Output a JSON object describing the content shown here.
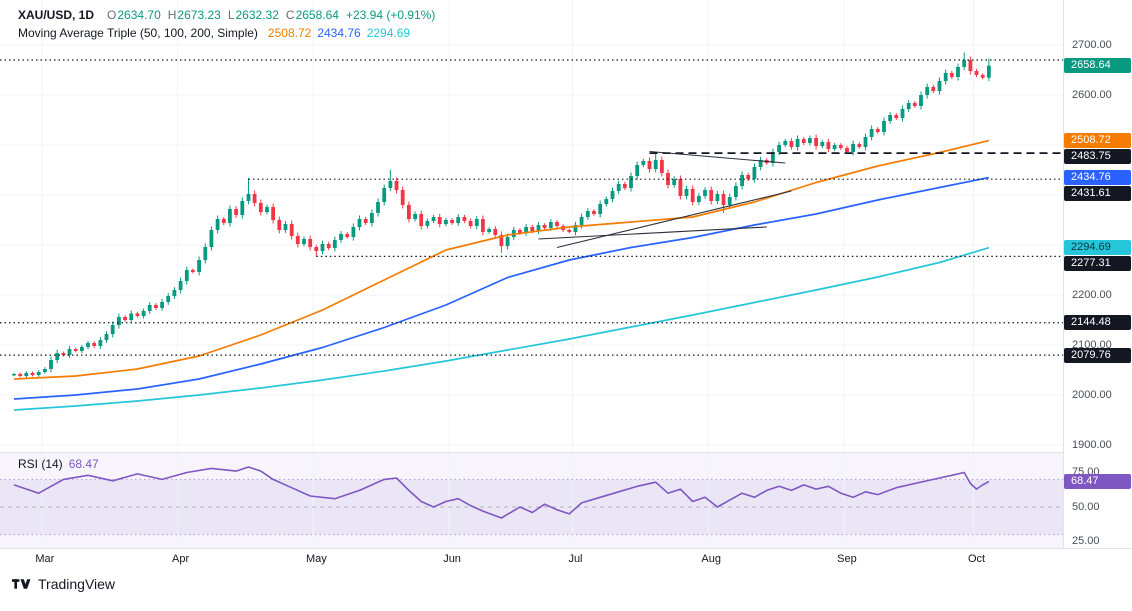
{
  "header": {
    "symbol": "XAU/USD, 1D",
    "o_label": "O",
    "o_value": "2634.70",
    "h_label": "H",
    "h_value": "2673.23",
    "l_label": "L",
    "l_value": "2632.32",
    "c_label": "C",
    "c_value": "2658.64",
    "change": "+23.94 (+0.91%)"
  },
  "ma_legend": {
    "label": "Moving Average Triple (50, 100, 200, Simple)",
    "v50": "2508.72",
    "v100": "2434.76",
    "v200": "2294.69"
  },
  "rsi_legend": {
    "label": "RSI (14)",
    "value": "68.47"
  },
  "footer": {
    "brand": "TradingView"
  },
  "colors": {
    "up": "#089981",
    "down": "#f23645",
    "ma50": "#f57c00",
    "ma100": "#2962ff",
    "ma200": "#26c6da",
    "rsi": "#7e57c2",
    "level": "#131722",
    "grid": "#f0f3fa"
  },
  "axis": {
    "price_ticks": [
      {
        "label": "2700.00",
        "price": 2700
      },
      {
        "label": "2600.00",
        "price": 2600
      },
      {
        "label": "2200.00",
        "price": 2200
      },
      {
        "label": "2100.00",
        "price": 2100
      },
      {
        "label": "2000.00",
        "price": 2000
      },
      {
        "label": "1900.00",
        "price": 1900
      }
    ],
    "rsi_ticks": [
      {
        "label": "75.00",
        "value": 75
      },
      {
        "label": "50.00",
        "value": 50
      },
      {
        "label": "25.00",
        "value": 25
      }
    ],
    "badges": [
      {
        "label": "2658.64",
        "price": 2658.64,
        "color": "#089981",
        "text_color": "#ffffff"
      },
      {
        "label": "2508.72",
        "price": 2508.72,
        "color": "#f57c00",
        "text_color": "#ffffff"
      },
      {
        "label": "2483.75",
        "price": 2483.75,
        "color": "#131722",
        "text_color": "#ffffff"
      },
      {
        "label": "2434.76",
        "price": 2434.76,
        "color": "#2962ff",
        "text_color": "#ffffff"
      },
      {
        "label": "2431.61",
        "price": 2431.61,
        "color": "#131722",
        "text_color": "#ffffff"
      },
      {
        "label": "2294.69",
        "price": 2294.69,
        "color": "#26c6da",
        "text_color": "#10343c"
      },
      {
        "label": "2277.31",
        "price": 2277.31,
        "color": "#131722",
        "text_color": "#ffffff"
      },
      {
        "label": "2144.48",
        "price": 2144.48,
        "color": "#131722",
        "text_color": "#ffffff"
      },
      {
        "label": "2079.76",
        "price": 2079.76,
        "color": "#131722",
        "text_color": "#ffffff"
      }
    ],
    "rsi_badge": {
      "label": "68.47",
      "value": 68.47,
      "color": "#7e57c2",
      "text_color": "#ffffff"
    }
  },
  "time_axis": {
    "months": [
      {
        "label": "Mar",
        "idx": 5
      },
      {
        "label": "Apr",
        "idx": 27
      },
      {
        "label": "May",
        "idx": 49
      },
      {
        "label": "Jun",
        "idx": 71
      },
      {
        "label": "Jul",
        "idx": 91
      },
      {
        "label": "Aug",
        "idx": 113
      },
      {
        "label": "Sep",
        "idx": 135
      },
      {
        "label": "Oct",
        "idx": 156
      }
    ]
  },
  "chart_data": {
    "type": "candlestick",
    "symbol": "XAU/USD",
    "timeframe": "1D",
    "title": "XAU/USD 1D with Moving Average Triple (50,100,200, Simple) and RSI (14)",
    "last_candle": {
      "o": 2634.7,
      "h": 2673.23,
      "l": 2632.32,
      "c": 2658.64,
      "change": 23.94,
      "change_pct": 0.91
    },
    "price_ylim": [
      1886,
      2790
    ],
    "grid_prices": [
      2700,
      2600,
      2500,
      2400,
      2300,
      2200,
      2100,
      2000,
      1900
    ],
    "first_open": 2040,
    "closes": [
      2042,
      2038,
      2044,
      2040,
      2046,
      2052,
      2070,
      2084,
      2080,
      2092,
      2088,
      2096,
      2104,
      2098,
      2110,
      2122,
      2140,
      2156,
      2150,
      2163,
      2158,
      2168,
      2180,
      2174,
      2186,
      2198,
      2210,
      2228,
      2250,
      2246,
      2270,
      2296,
      2330,
      2352,
      2344,
      2372,
      2360,
      2388,
      2402,
      2384,
      2366,
      2376,
      2350,
      2330,
      2342,
      2318,
      2302,
      2312,
      2296,
      2288,
      2302,
      2294,
      2310,
      2322,
      2316,
      2336,
      2352,
      2344,
      2364,
      2386,
      2414,
      2428,
      2410,
      2380,
      2352,
      2362,
      2338,
      2348,
      2356,
      2342,
      2350,
      2344,
      2356,
      2348,
      2338,
      2352,
      2326,
      2332,
      2320,
      2298,
      2316,
      2330,
      2324,
      2336,
      2328,
      2340,
      2334,
      2346,
      2338,
      2330,
      2326,
      2340,
      2356,
      2368,
      2362,
      2382,
      2392,
      2408,
      2422,
      2414,
      2438,
      2460,
      2468,
      2452,
      2470,
      2444,
      2420,
      2432,
      2398,
      2412,
      2386,
      2398,
      2410,
      2388,
      2402,
      2380,
      2396,
      2418,
      2440,
      2432,
      2456,
      2470,
      2464,
      2486,
      2500,
      2508,
      2496,
      2512,
      2504,
      2514,
      2498,
      2506,
      2492,
      2500,
      2494,
      2486,
      2502,
      2496,
      2516,
      2532,
      2526,
      2548,
      2560,
      2554,
      2572,
      2584,
      2578,
      2600,
      2616,
      2608,
      2628,
      2644,
      2636,
      2656,
      2670,
      2648,
      2640,
      2634.7,
      2658.64
    ],
    "spike_highs": {
      "38": 2434,
      "61": 2450.5,
      "104": 2487,
      "154": 2685,
      "158": 2673.23
    },
    "spike_lows": {
      "49": 2277.3,
      "79": 2284.5,
      "115": 2364,
      "158": 2632.32
    },
    "ma50": {
      "name": "SMA 50",
      "last": 2508.72,
      "points": [
        [
          0,
          2032
        ],
        [
          10,
          2038
        ],
        [
          20,
          2052
        ],
        [
          30,
          2078
        ],
        [
          40,
          2120
        ],
        [
          50,
          2170
        ],
        [
          60,
          2230
        ],
        [
          70,
          2290
        ],
        [
          80,
          2320
        ],
        [
          90,
          2336
        ],
        [
          100,
          2346
        ],
        [
          110,
          2356
        ],
        [
          120,
          2386
        ],
        [
          130,
          2425
        ],
        [
          140,
          2458
        ],
        [
          150,
          2485
        ],
        [
          158,
          2508.72
        ]
      ]
    },
    "ma100": {
      "name": "SMA 100",
      "last": 2434.76,
      "points": [
        [
          0,
          1992
        ],
        [
          10,
          2000
        ],
        [
          20,
          2012
        ],
        [
          30,
          2032
        ],
        [
          40,
          2062
        ],
        [
          50,
          2095
        ],
        [
          60,
          2135
        ],
        [
          70,
          2180
        ],
        [
          80,
          2235
        ],
        [
          90,
          2270
        ],
        [
          100,
          2295
        ],
        [
          110,
          2315
        ],
        [
          120,
          2340
        ],
        [
          130,
          2362
        ],
        [
          140,
          2390
        ],
        [
          150,
          2415
        ],
        [
          158,
          2434.76
        ]
      ]
    },
    "ma200": {
      "name": "SMA 200",
      "last": 2294.69,
      "points": [
        [
          0,
          1970
        ],
        [
          10,
          1978
        ],
        [
          20,
          1988
        ],
        [
          30,
          2000
        ],
        [
          40,
          2014
        ],
        [
          50,
          2030
        ],
        [
          60,
          2048
        ],
        [
          70,
          2068
        ],
        [
          80,
          2090
        ],
        [
          90,
          2112
        ],
        [
          100,
          2136
        ],
        [
          110,
          2160
        ],
        [
          120,
          2185
        ],
        [
          130,
          2210
        ],
        [
          140,
          2236
        ],
        [
          150,
          2265
        ],
        [
          158,
          2294.69
        ]
      ]
    },
    "levels_dotted": [
      {
        "price": 2670.0,
        "from": 0
      },
      {
        "price": 2431.61,
        "from": 38
      },
      {
        "price": 2277.31,
        "from": 49
      },
      {
        "price": 2144.48,
        "from": 0
      },
      {
        "price": 2079.76,
        "from": 0
      }
    ],
    "level_dashed": {
      "price": 2483.75,
      "from": 103
    },
    "trendlines": [
      {
        "from": [
          103,
          2487
        ],
        "to": [
          125,
          2464
        ]
      },
      {
        "from": [
          85,
          2312
        ],
        "to": [
          122,
          2336
        ]
      },
      {
        "from": [
          88,
          2295
        ],
        "to": [
          126,
          2408
        ]
      }
    ],
    "rsi": {
      "period": 14,
      "last": 68.47,
      "upper": 70,
      "mid": 50,
      "lower": 30,
      "ylim": [
        21,
        89
      ],
      "points": [
        [
          0,
          66
        ],
        [
          4,
          60
        ],
        [
          8,
          70
        ],
        [
          12,
          73
        ],
        [
          16,
          69
        ],
        [
          20,
          74
        ],
        [
          24,
          70
        ],
        [
          28,
          75
        ],
        [
          32,
          78
        ],
        [
          36,
          76
        ],
        [
          38,
          79
        ],
        [
          40,
          76
        ],
        [
          42,
          70
        ],
        [
          45,
          64
        ],
        [
          48,
          58
        ],
        [
          52,
          56
        ],
        [
          56,
          62
        ],
        [
          60,
          70
        ],
        [
          62,
          71
        ],
        [
          64,
          62
        ],
        [
          66,
          54
        ],
        [
          68,
          50
        ],
        [
          70,
          54
        ],
        [
          72,
          56
        ],
        [
          74,
          51
        ],
        [
          76,
          47
        ],
        [
          79,
          42
        ],
        [
          82,
          50
        ],
        [
          84,
          46
        ],
        [
          86,
          52
        ],
        [
          88,
          48
        ],
        [
          90,
          45
        ],
        [
          92,
          53
        ],
        [
          95,
          57
        ],
        [
          98,
          61
        ],
        [
          101,
          65
        ],
        [
          104,
          68
        ],
        [
          106,
          60
        ],
        [
          108,
          63
        ],
        [
          110,
          54
        ],
        [
          112,
          57
        ],
        [
          114,
          50
        ],
        [
          116,
          55
        ],
        [
          118,
          60
        ],
        [
          120,
          57
        ],
        [
          122,
          62
        ],
        [
          124,
          65
        ],
        [
          126,
          62
        ],
        [
          128,
          66
        ],
        [
          130,
          63
        ],
        [
          132,
          65
        ],
        [
          134,
          60
        ],
        [
          136,
          57
        ],
        [
          138,
          61
        ],
        [
          140,
          59
        ],
        [
          143,
          64
        ],
        [
          146,
          67
        ],
        [
          149,
          70
        ],
        [
          152,
          73
        ],
        [
          154,
          75
        ],
        [
          155,
          67
        ],
        [
          156,
          63
        ],
        [
          157,
          66
        ],
        [
          158,
          68.47
        ]
      ]
    }
  }
}
